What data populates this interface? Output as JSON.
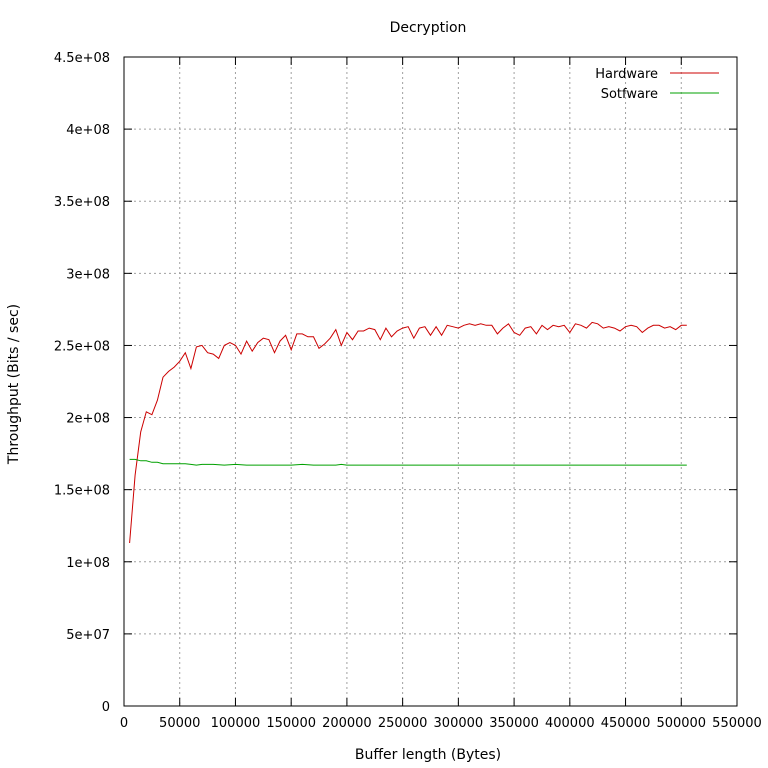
{
  "chart_data": {
    "type": "line",
    "title": "Decryption",
    "xlabel": "Buffer length (Bytes)",
    "ylabel": "Throughput (Bits / sec)",
    "xlim": [
      0,
      550000
    ],
    "ylim": [
      0,
      450000000
    ],
    "x_ticks": [
      0,
      50000,
      100000,
      150000,
      200000,
      250000,
      300000,
      350000,
      400000,
      450000,
      500000,
      550000
    ],
    "x_tick_labels": [
      "0",
      "50000",
      "100000",
      "150000",
      "200000",
      "250000",
      "300000",
      "350000",
      "400000",
      "450000",
      "500000",
      "550000"
    ],
    "y_ticks": [
      0,
      50000000,
      100000000,
      150000000,
      200000000,
      250000000,
      300000000,
      350000000,
      400000000,
      450000000
    ],
    "y_tick_labels": [
      "0",
      "5e+07",
      "1e+08",
      "1.5e+08",
      "2e+08",
      "2.5e+08",
      "3e+08",
      "3.5e+08",
      "4e+08",
      "4.5e+08"
    ],
    "grid": true,
    "legend": "top-right",
    "series": [
      {
        "name": "Hardware",
        "color": "#cc0000",
        "points": [
          [
            5000,
            113000000
          ],
          [
            10000,
            160000000
          ],
          [
            15000,
            190000000
          ],
          [
            20000,
            204000000
          ],
          [
            25000,
            202000000
          ],
          [
            30000,
            212000000
          ],
          [
            35000,
            228000000
          ],
          [
            40000,
            232000000
          ],
          [
            45000,
            235000000
          ],
          [
            50000,
            239000000
          ],
          [
            55000,
            245000000
          ],
          [
            60000,
            234000000
          ],
          [
            65000,
            249000000
          ],
          [
            70000,
            250000000
          ],
          [
            75000,
            245000000
          ],
          [
            80000,
            244000000
          ],
          [
            85000,
            241000000
          ],
          [
            90000,
            250000000
          ],
          [
            95000,
            252000000
          ],
          [
            100000,
            250000000
          ],
          [
            105000,
            244000000
          ],
          [
            110000,
            253000000
          ],
          [
            115000,
            246000000
          ],
          [
            120000,
            252000000
          ],
          [
            125000,
            255000000
          ],
          [
            130000,
            254000000
          ],
          [
            135000,
            245000000
          ],
          [
            140000,
            253000000
          ],
          [
            145000,
            257000000
          ],
          [
            150000,
            247000000
          ],
          [
            155000,
            258000000
          ],
          [
            160000,
            258000000
          ],
          [
            165000,
            256000000
          ],
          [
            170000,
            256000000
          ],
          [
            175000,
            248000000
          ],
          [
            180000,
            251000000
          ],
          [
            185000,
            255000000
          ],
          [
            190000,
            261000000
          ],
          [
            195000,
            250000000
          ],
          [
            200000,
            259000000
          ],
          [
            205000,
            254000000
          ],
          [
            210000,
            260000000
          ],
          [
            215000,
            260000000
          ],
          [
            220000,
            262000000
          ],
          [
            225000,
            261000000
          ],
          [
            230000,
            254000000
          ],
          [
            235000,
            262000000
          ],
          [
            240000,
            256000000
          ],
          [
            245000,
            260000000
          ],
          [
            250000,
            262000000
          ],
          [
            255000,
            263000000
          ],
          [
            260000,
            255000000
          ],
          [
            265000,
            262000000
          ],
          [
            270000,
            263000000
          ],
          [
            275000,
            257000000
          ],
          [
            280000,
            263000000
          ],
          [
            285000,
            257000000
          ],
          [
            290000,
            264000000
          ],
          [
            295000,
            263000000
          ],
          [
            300000,
            262000000
          ],
          [
            305000,
            264000000
          ],
          [
            310000,
            265000000
          ],
          [
            315000,
            264000000
          ],
          [
            320000,
            265000000
          ],
          [
            325000,
            264000000
          ],
          [
            330000,
            264000000
          ],
          [
            335000,
            258000000
          ],
          [
            340000,
            262000000
          ],
          [
            345000,
            265000000
          ],
          [
            350000,
            259000000
          ],
          [
            355000,
            257000000
          ],
          [
            360000,
            262000000
          ],
          [
            365000,
            263000000
          ],
          [
            370000,
            258000000
          ],
          [
            375000,
            264000000
          ],
          [
            380000,
            261000000
          ],
          [
            385000,
            264000000
          ],
          [
            390000,
            263000000
          ],
          [
            395000,
            264000000
          ],
          [
            400000,
            259000000
          ],
          [
            405000,
            265000000
          ],
          [
            410000,
            264000000
          ],
          [
            415000,
            262000000
          ],
          [
            420000,
            266000000
          ],
          [
            425000,
            265000000
          ],
          [
            430000,
            262000000
          ],
          [
            435000,
            263000000
          ],
          [
            440000,
            262000000
          ],
          [
            445000,
            260000000
          ],
          [
            450000,
            263000000
          ],
          [
            455000,
            264000000
          ],
          [
            460000,
            263000000
          ],
          [
            465000,
            259000000
          ],
          [
            470000,
            262000000
          ],
          [
            475000,
            264000000
          ],
          [
            480000,
            264000000
          ],
          [
            485000,
            262000000
          ],
          [
            490000,
            263000000
          ],
          [
            495000,
            261000000
          ],
          [
            500000,
            264000000
          ],
          [
            505000,
            264000000
          ]
        ]
      },
      {
        "name": "Sotfware",
        "color": "#00a000",
        "points": [
          [
            5000,
            171000000
          ],
          [
            10000,
            171000000
          ],
          [
            15000,
            170000000
          ],
          [
            20000,
            170000000
          ],
          [
            25000,
            169000000
          ],
          [
            30000,
            169000000
          ],
          [
            35000,
            168000000
          ],
          [
            40000,
            168000000
          ],
          [
            45000,
            168000000
          ],
          [
            50000,
            168000000
          ],
          [
            55000,
            168000000
          ],
          [
            60000,
            167500000
          ],
          [
            65000,
            167000000
          ],
          [
            70000,
            167500000
          ],
          [
            80000,
            167500000
          ],
          [
            90000,
            167000000
          ],
          [
            100000,
            167500000
          ],
          [
            110000,
            167000000
          ],
          [
            120000,
            167000000
          ],
          [
            150000,
            167000000
          ],
          [
            160000,
            167500000
          ],
          [
            170000,
            167000000
          ],
          [
            190000,
            167000000
          ],
          [
            195000,
            167500000
          ],
          [
            200000,
            167000000
          ],
          [
            250000,
            167000000
          ],
          [
            300000,
            167000000
          ],
          [
            350000,
            167000000
          ],
          [
            400000,
            167000000
          ],
          [
            450000,
            167000000
          ],
          [
            505000,
            167000000
          ]
        ]
      }
    ]
  }
}
